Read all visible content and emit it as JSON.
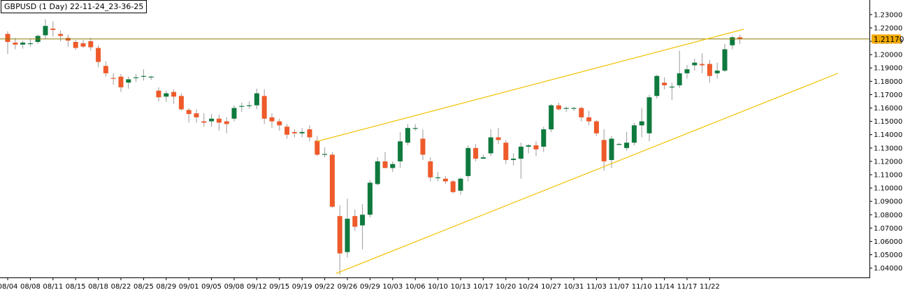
{
  "title": "GBPUSD (1 Day) 22-11-24_23-36-25",
  "current_price_label": "1.21170",
  "colors": {
    "bull": "#0e7a3e",
    "bear": "#ee5a2a",
    "wick": "#9a9a9a",
    "resistance_line": "#8b7b00",
    "trend_line": "#f2c200",
    "price_tag": "#f2a900"
  },
  "chart_data": {
    "type": "candlestick",
    "symbol": "GBPUSD",
    "timeframe": "1 Day",
    "ylim": [
      1.033,
      1.2315
    ],
    "y_ticks": [
      "1.23000",
      "1.22000",
      "1.21000",
      "1.20000",
      "1.19000",
      "1.18000",
      "1.17000",
      "1.16000",
      "1.15000",
      "1.14000",
      "1.13000",
      "1.12000",
      "1.11000",
      "1.10000",
      "1.09000",
      "1.08000",
      "1.07000",
      "1.06000",
      "1.05000",
      "1.04000"
    ],
    "x_labels": [
      {
        "index": 0,
        "label": "08/04"
      },
      {
        "index": 3,
        "label": "08/08"
      },
      {
        "index": 6,
        "label": "08/11"
      },
      {
        "index": 9,
        "label": "08/15"
      },
      {
        "index": 12,
        "label": "08/18"
      },
      {
        "index": 15,
        "label": "08/22"
      },
      {
        "index": 18,
        "label": "08/25"
      },
      {
        "index": 21,
        "label": "08/29"
      },
      {
        "index": 24,
        "label": "09/01"
      },
      {
        "index": 27,
        "label": "09/05"
      },
      {
        "index": 30,
        "label": "09/08"
      },
      {
        "index": 33,
        "label": "09/12"
      },
      {
        "index": 36,
        "label": "09/15"
      },
      {
        "index": 39,
        "label": "09/19"
      },
      {
        "index": 42,
        "label": "09/22"
      },
      {
        "index": 45,
        "label": "09/26"
      },
      {
        "index": 48,
        "label": "09/29"
      },
      {
        "index": 51,
        "label": "10/03"
      },
      {
        "index": 54,
        "label": "10/06"
      },
      {
        "index": 57,
        "label": "10/10"
      },
      {
        "index": 60,
        "label": "10/13"
      },
      {
        "index": 63,
        "label": "10/17"
      },
      {
        "index": 66,
        "label": "10/20"
      },
      {
        "index": 69,
        "label": "10/24"
      },
      {
        "index": 72,
        "label": "10/27"
      },
      {
        "index": 75,
        "label": "10/31"
      },
      {
        "index": 78,
        "label": "11/03"
      },
      {
        "index": 81,
        "label": "11/07"
      },
      {
        "index": 84,
        "label": "11/10"
      },
      {
        "index": 87,
        "label": "11/14"
      },
      {
        "index": 90,
        "label": "11/17"
      },
      {
        "index": 93,
        "label": "11/22"
      }
    ],
    "candles": [
      [
        1.2155,
        1.2175,
        1.2005,
        1.2095
      ],
      [
        1.209,
        1.2125,
        1.204,
        1.2075
      ],
      [
        1.2075,
        1.2105,
        1.2045,
        1.209
      ],
      [
        1.2085,
        1.212,
        1.206,
        1.2085
      ],
      [
        1.2095,
        1.215,
        1.208,
        1.214
      ],
      [
        1.2145,
        1.2265,
        1.2115,
        1.2215
      ],
      [
        1.2195,
        1.225,
        1.2135,
        1.2185
      ],
      [
        1.2155,
        1.218,
        1.21,
        1.214
      ],
      [
        1.2125,
        1.215,
        1.206,
        1.2105
      ],
      [
        1.2095,
        1.211,
        1.2035,
        1.205
      ],
      [
        1.2085,
        1.211,
        1.205,
        1.206
      ],
      [
        1.21,
        1.2125,
        1.203,
        1.2055
      ],
      [
        1.205,
        1.207,
        1.1905,
        1.1945
      ],
      [
        1.1915,
        1.195,
        1.1835,
        1.186
      ],
      [
        1.1825,
        1.186,
        1.1775,
        1.182
      ],
      [
        1.1835,
        1.1855,
        1.172,
        1.1755
      ],
      [
        1.179,
        1.1835,
        1.1745,
        1.1815
      ],
      [
        1.183,
        1.1855,
        1.1795,
        1.183
      ],
      [
        1.1835,
        1.189,
        1.1805,
        1.184
      ],
      [
        1.1835,
        1.184,
        1.181,
        1.1835
      ],
      [
        1.173,
        1.1755,
        1.165,
        1.168
      ],
      [
        1.1685,
        1.173,
        1.1645,
        1.171
      ],
      [
        1.172,
        1.174,
        1.163,
        1.1685
      ],
      [
        1.169,
        1.171,
        1.158,
        1.159
      ],
      [
        1.1585,
        1.16,
        1.149,
        1.1555
      ],
      [
        1.156,
        1.159,
        1.149,
        1.153
      ],
      [
        1.15,
        1.156,
        1.146,
        1.149
      ],
      [
        1.15,
        1.1555,
        1.146,
        1.152
      ],
      [
        1.152,
        1.155,
        1.143,
        1.149
      ],
      [
        1.15,
        1.153,
        1.141,
        1.148
      ],
      [
        1.152,
        1.162,
        1.15,
        1.16
      ],
      [
        1.161,
        1.164,
        1.157,
        1.1615
      ],
      [
        1.162,
        1.165,
        1.1595,
        1.162
      ],
      [
        1.162,
        1.1745,
        1.159,
        1.171
      ],
      [
        1.169,
        1.174,
        1.148,
        1.152
      ],
      [
        1.153,
        1.156,
        1.145,
        1.15
      ],
      [
        1.15,
        1.152,
        1.143,
        1.147
      ],
      [
        1.146,
        1.148,
        1.137,
        1.14
      ],
      [
        1.142,
        1.144,
        1.138,
        1.141
      ],
      [
        1.141,
        1.145,
        1.138,
        1.142
      ],
      [
        1.144,
        1.147,
        1.135,
        1.138
      ],
      [
        1.1355,
        1.139,
        1.124,
        1.125
      ],
      [
        1.1255,
        1.1305,
        1.123,
        1.1255
      ],
      [
        1.125,
        1.127,
        1.085,
        1.086
      ],
      [
        1.079,
        1.087,
        1.035,
        1.051
      ],
      [
        1.052,
        1.092,
        1.048,
        1.077
      ],
      [
        1.079,
        1.084,
        1.068,
        1.071
      ],
      [
        1.072,
        1.088,
        1.054,
        1.08
      ],
      [
        1.08,
        1.106,
        1.078,
        1.104
      ],
      [
        1.103,
        1.123,
        1.102,
        1.12
      ],
      [
        1.12,
        1.127,
        1.115,
        1.115
      ],
      [
        1.115,
        1.12,
        1.112,
        1.118
      ],
      [
        1.12,
        1.142,
        1.115,
        1.135
      ],
      [
        1.134,
        1.148,
        1.132,
        1.145
      ],
      [
        1.145,
        1.148,
        1.143,
        1.145
      ],
      [
        1.137,
        1.144,
        1.121,
        1.125
      ],
      [
        1.12,
        1.123,
        1.105,
        1.108
      ],
      [
        1.108,
        1.112,
        1.105,
        1.108
      ],
      [
        1.107,
        1.109,
        1.103,
        1.105
      ],
      [
        1.105,
        1.106,
        1.096,
        1.097
      ],
      [
        1.098,
        1.108,
        1.095,
        1.107
      ],
      [
        1.109,
        1.132,
        1.105,
        1.13
      ],
      [
        1.13,
        1.133,
        1.12,
        1.122
      ],
      [
        1.122,
        1.125,
        1.122,
        1.123
      ],
      [
        1.126,
        1.144,
        1.124,
        1.138
      ],
      [
        1.138,
        1.145,
        1.133,
        1.136
      ],
      [
        1.134,
        1.136,
        1.118,
        1.121
      ],
      [
        1.121,
        1.126,
        1.117,
        1.122
      ],
      [
        1.122,
        1.134,
        1.107,
        1.131
      ],
      [
        1.131,
        1.133,
        1.126,
        1.132
      ],
      [
        1.132,
        1.135,
        1.124,
        1.129
      ],
      [
        1.131,
        1.146,
        1.127,
        1.144
      ],
      [
        1.144,
        1.163,
        1.142,
        1.162
      ],
      [
        1.162,
        1.164,
        1.158,
        1.159
      ],
      [
        1.16,
        1.161,
        1.157,
        1.16
      ],
      [
        1.16,
        1.161,
        1.158,
        1.16
      ],
      [
        1.16,
        1.161,
        1.15,
        1.153
      ],
      [
        1.153,
        1.158,
        1.147,
        1.15
      ],
      [
        1.15,
        1.151,
        1.139,
        1.141
      ],
      [
        1.136,
        1.144,
        1.113,
        1.12
      ],
      [
        1.121,
        1.139,
        1.115,
        1.137
      ],
      [
        1.133,
        1.134,
        1.132,
        1.133
      ],
      [
        1.13,
        1.142,
        1.128,
        1.134
      ],
      [
        1.134,
        1.149,
        1.132,
        1.147
      ],
      [
        1.147,
        1.16,
        1.138,
        1.15
      ],
      [
        1.141,
        1.17,
        1.135,
        1.168
      ],
      [
        1.169,
        1.185,
        1.167,
        1.184
      ],
      [
        1.179,
        1.183,
        1.174,
        1.177
      ],
      [
        1.176,
        1.179,
        1.166,
        1.176
      ],
      [
        1.177,
        1.203,
        1.175,
        1.186
      ],
      [
        1.186,
        1.192,
        1.182,
        1.189
      ],
      [
        1.192,
        1.197,
        1.188,
        1.194
      ],
      [
        1.193,
        1.201,
        1.186,
        1.192
      ],
      [
        1.193,
        1.196,
        1.179,
        1.184
      ],
      [
        1.186,
        1.194,
        1.182,
        1.188
      ],
      [
        1.188,
        1.208,
        1.187,
        1.204
      ],
      [
        1.207,
        1.214,
        1.204,
        1.213
      ],
      [
        1.213,
        1.215,
        1.208,
        1.2117
      ]
    ],
    "horizontal_lines": [
      {
        "price": 1.2117
      }
    ],
    "trend_lines": [
      {
        "from": {
          "index": 41,
          "price": 1.135
        },
        "to": {
          "index": 97.5,
          "price": 1.219
        }
      },
      {
        "from": {
          "index": 43.5,
          "price": 1.036
        },
        "to": {
          "index": 110,
          "price": 1.186
        }
      }
    ]
  }
}
